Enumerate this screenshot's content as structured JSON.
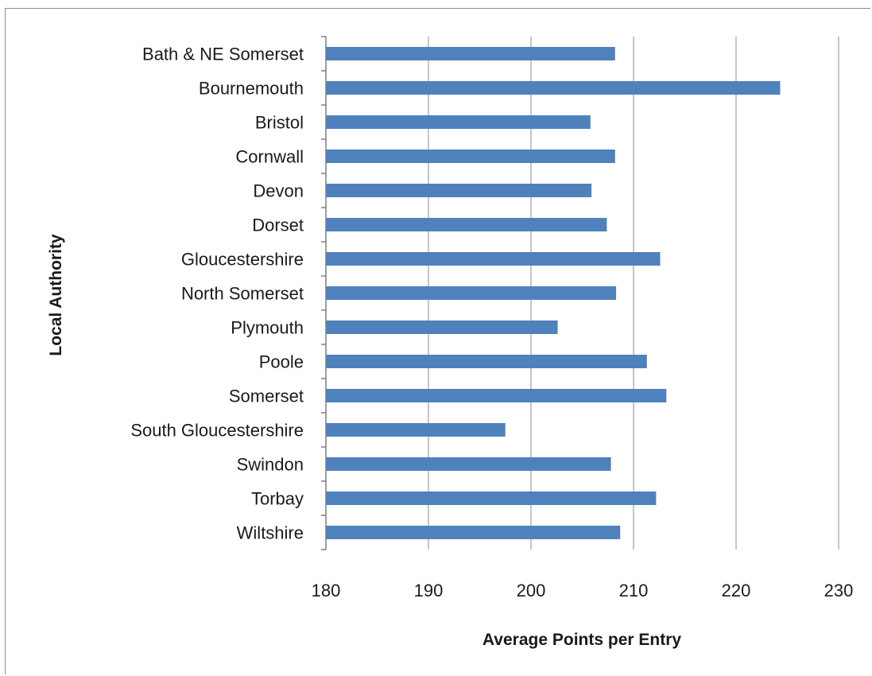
{
  "chart_data": {
    "type": "bar",
    "orientation": "horizontal",
    "xlabel": "Average Points per Entry",
    "ylabel": "Local Authority",
    "xlim": [
      180,
      230
    ],
    "xticks": [
      180,
      190,
      200,
      210,
      220,
      230
    ],
    "grid": true,
    "bar_color": "#4f81bd",
    "categories": [
      "Bath & NE Somerset",
      "Bournemouth",
      "Bristol",
      "Cornwall",
      "Devon",
      "Dorset",
      "Gloucestershire",
      "North Somerset",
      "Plymouth",
      "Poole",
      "Somerset",
      "South Gloucestershire",
      "Swindon",
      "Torbay",
      "Wiltshire"
    ],
    "values": [
      208.2,
      224.3,
      205.8,
      208.2,
      205.9,
      207.4,
      212.6,
      208.3,
      202.6,
      211.3,
      213.2,
      197.5,
      207.8,
      212.2,
      208.7
    ]
  }
}
